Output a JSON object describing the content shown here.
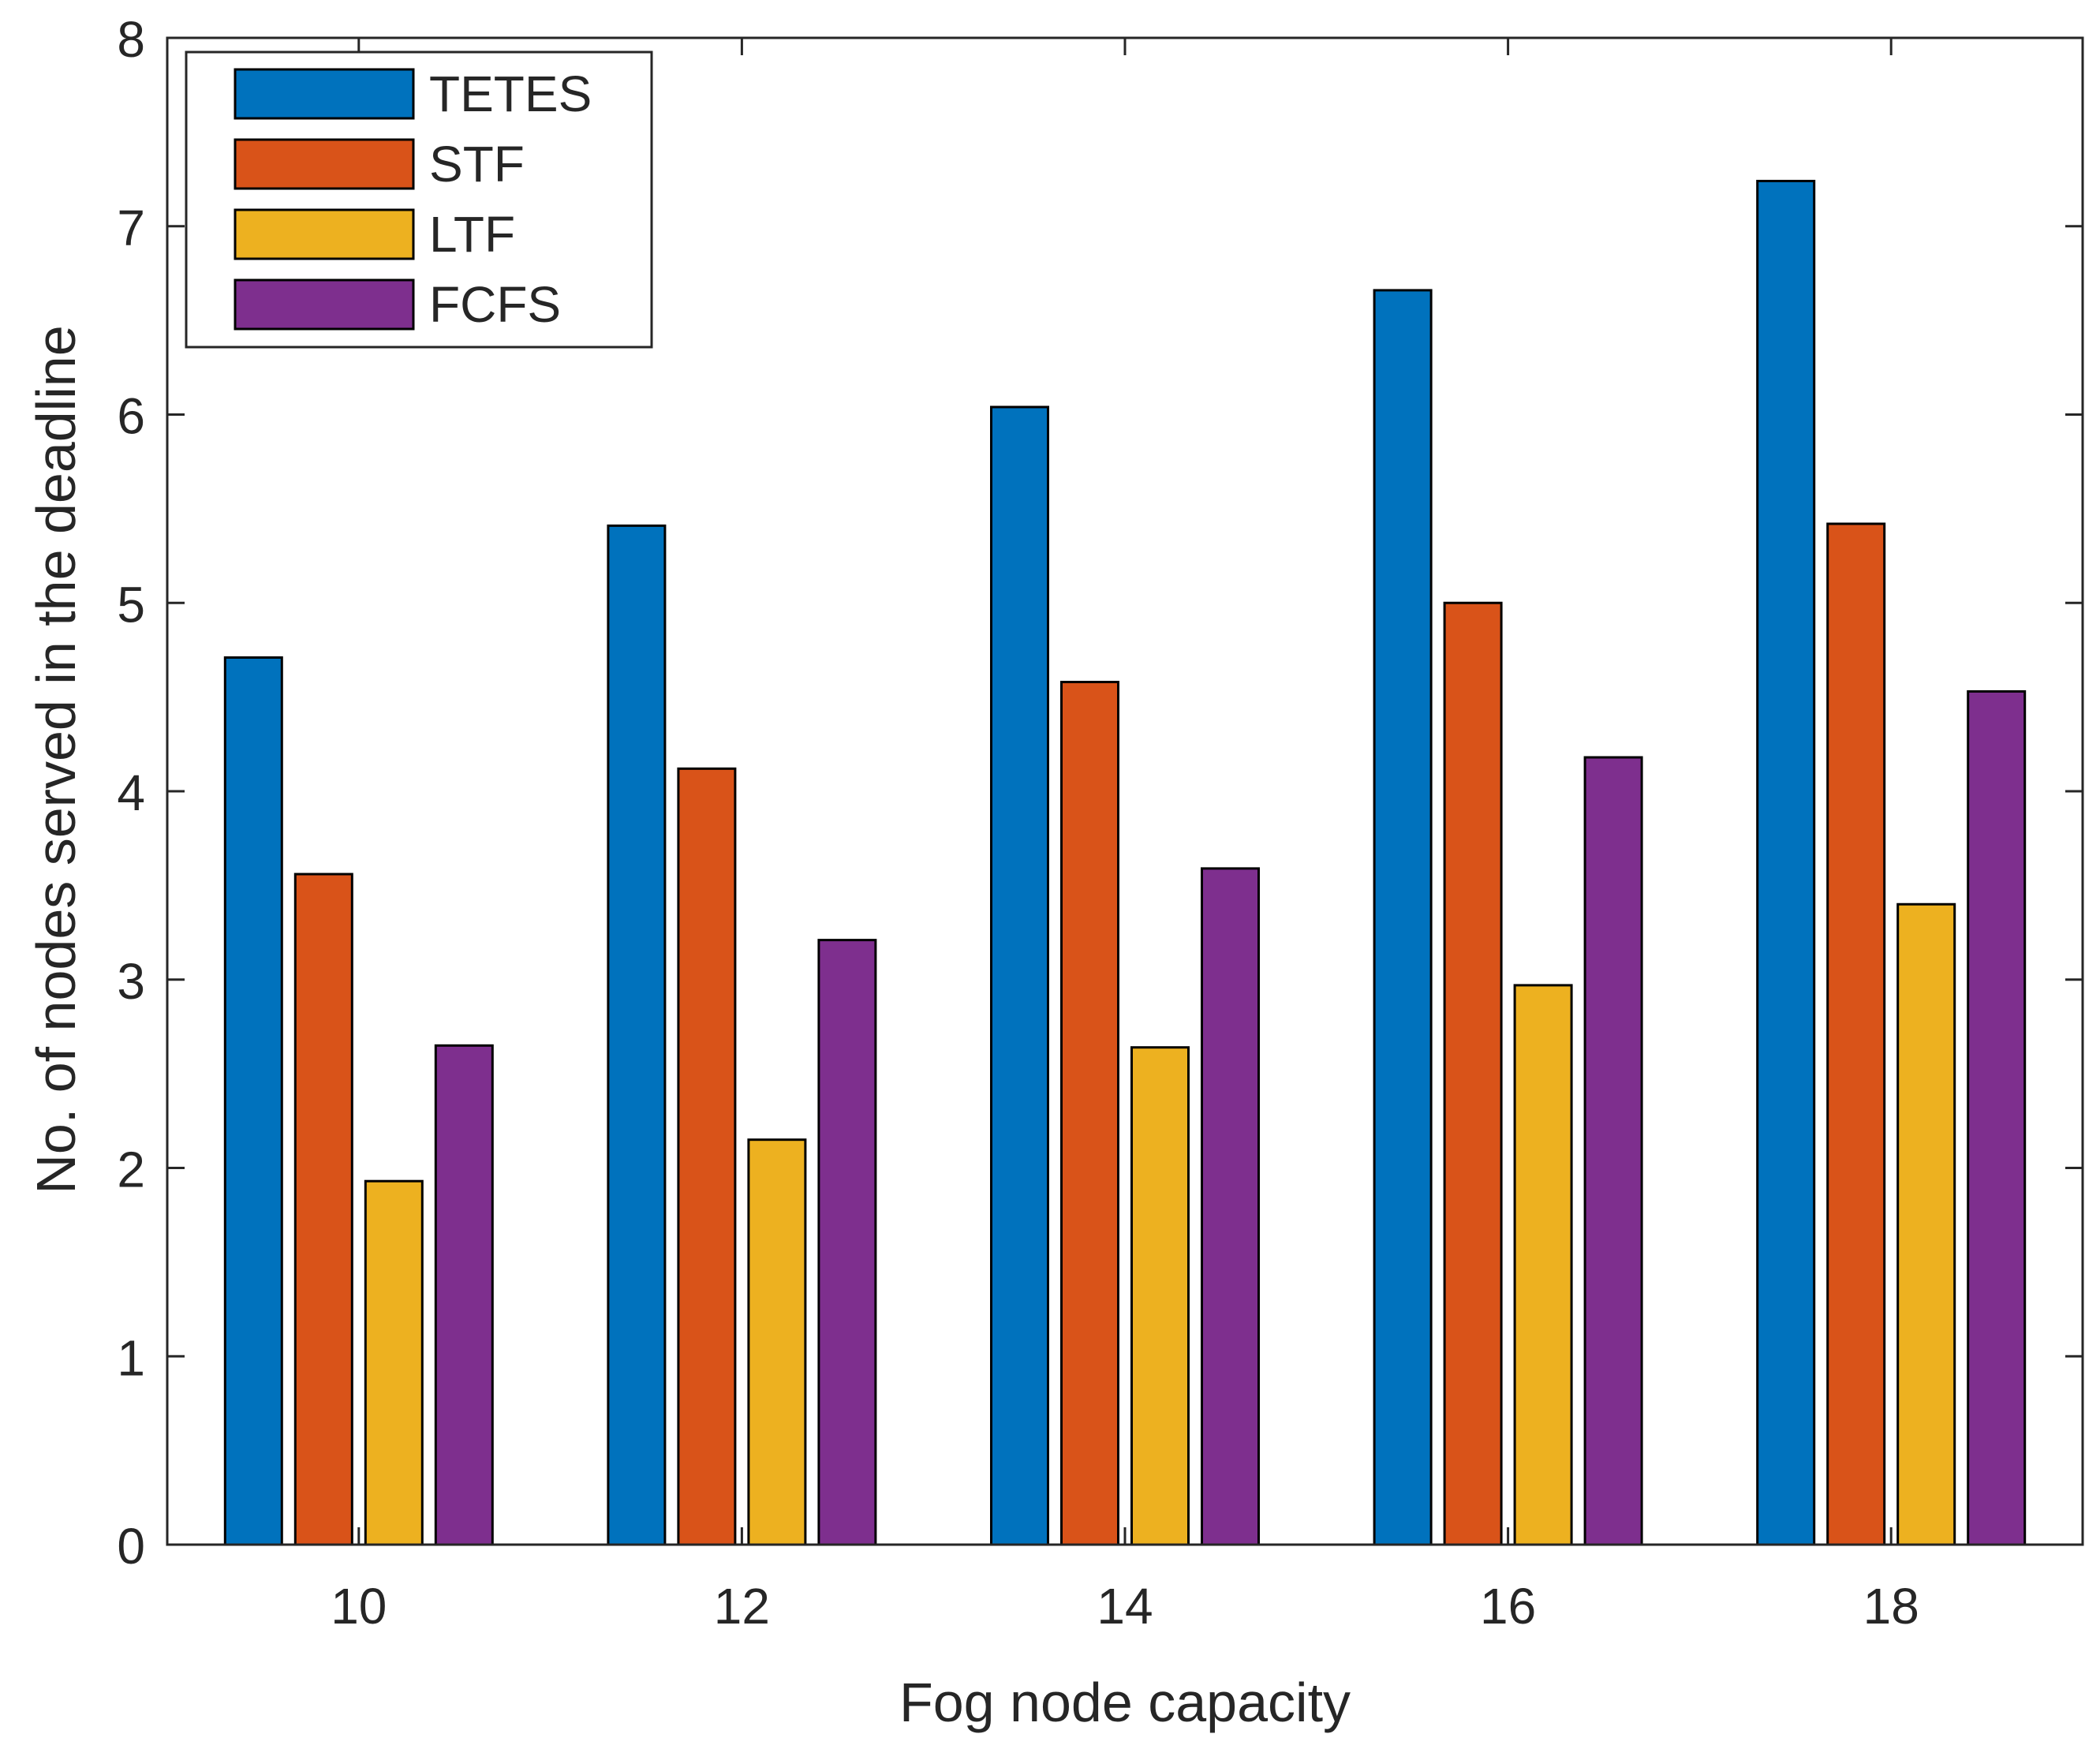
{
  "chart_data": {
    "type": "bar",
    "title": "",
    "xlabel": "Fog node capacity",
    "ylabel": "No. of nodes served in the deadline",
    "categories": [
      "10",
      "12",
      "14",
      "16",
      "18"
    ],
    "ylim": [
      0,
      8
    ],
    "yticks": [
      0,
      1,
      2,
      3,
      4,
      5,
      6,
      7,
      8
    ],
    "grid": false,
    "legend_position": "top-left",
    "series": [
      {
        "name": "TETES",
        "color": "#0072BD",
        "values": [
          4.71,
          5.41,
          6.04,
          6.66,
          7.24
        ]
      },
      {
        "name": "STF",
        "color": "#D95319",
        "values": [
          3.56,
          4.12,
          4.58,
          5.0,
          5.42
        ]
      },
      {
        "name": "LTF",
        "color": "#EDB120",
        "values": [
          1.93,
          2.15,
          2.64,
          2.97,
          3.4
        ]
      },
      {
        "name": "FCFS",
        "color": "#7E2F8E",
        "values": [
          2.65,
          3.21,
          3.59,
          4.18,
          4.53
        ]
      }
    ]
  }
}
